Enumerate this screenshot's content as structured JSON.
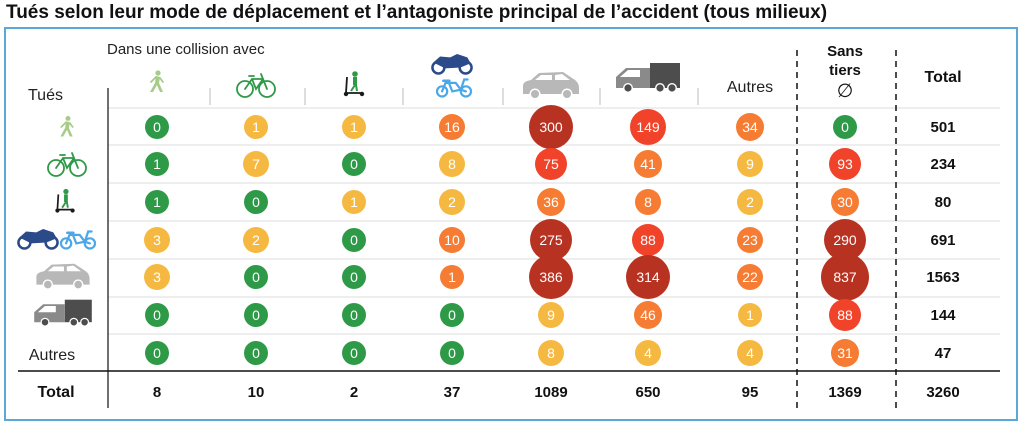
{
  "title": "Tués selon leur mode de déplacement et l’antagoniste principal de l’accident (tous milieux)",
  "header": {
    "collision_label": "Dans une collision avec",
    "row_axis_label": "Tués",
    "autres": "Autres",
    "sans_tiers_line1": "Sans",
    "sans_tiers_line2": "tiers",
    "sans_tiers_symbol": "∅",
    "total": "Total"
  },
  "colors": {
    "green": "#2e9a48",
    "yellow": "#f5b942",
    "orange": "#f57c32",
    "red": "#f0432a",
    "dark_red": "#b83222",
    "frame": "#5aa9d6"
  },
  "chart_data": {
    "type": "table",
    "title": "Tués selon leur mode de déplacement et l’antagoniste principal de l’accident (tous milieux)",
    "row_header": "Tués",
    "column_header": "Dans une collision avec",
    "columns": [
      {
        "icon": "pedestrian-icon"
      },
      {
        "icon": "bicycle-icon"
      },
      {
        "icon": "scooter-icon"
      },
      {
        "icon": "motorcycle-moped-icon"
      },
      {
        "icon": "car-icon"
      },
      {
        "icon": "truck-van-icon"
      },
      {
        "label": "Autres"
      },
      {
        "label": "Sans tiers ∅"
      }
    ],
    "rows": [
      {
        "icon": "pedestrian-icon",
        "values": [
          0,
          1,
          1,
          16,
          300,
          149,
          34,
          0
        ],
        "total": 501
      },
      {
        "icon": "bicycle-icon",
        "values": [
          1,
          7,
          0,
          8,
          75,
          41,
          9,
          93
        ],
        "total": 234
      },
      {
        "icon": "scooter-icon",
        "values": [
          1,
          0,
          1,
          2,
          36,
          8,
          2,
          30
        ],
        "total": 80
      },
      {
        "icon": "motorcycle-moped-icon",
        "values": [
          3,
          2,
          0,
          10,
          275,
          88,
          23,
          290
        ],
        "total": 691
      },
      {
        "icon": "car-icon",
        "values": [
          3,
          0,
          0,
          1,
          386,
          314,
          22,
          837
        ],
        "total": 1563
      },
      {
        "icon": "truck-van-icon",
        "values": [
          0,
          0,
          0,
          0,
          9,
          46,
          1,
          88
        ],
        "total": 144
      },
      {
        "label": "Autres",
        "values": [
          0,
          0,
          0,
          0,
          8,
          4,
          4,
          31
        ],
        "total": 47
      }
    ],
    "totals_row": {
      "label": "Total",
      "values": [
        8,
        10,
        2,
        37,
        1089,
        650,
        95,
        1369
      ],
      "total": 3260
    }
  }
}
